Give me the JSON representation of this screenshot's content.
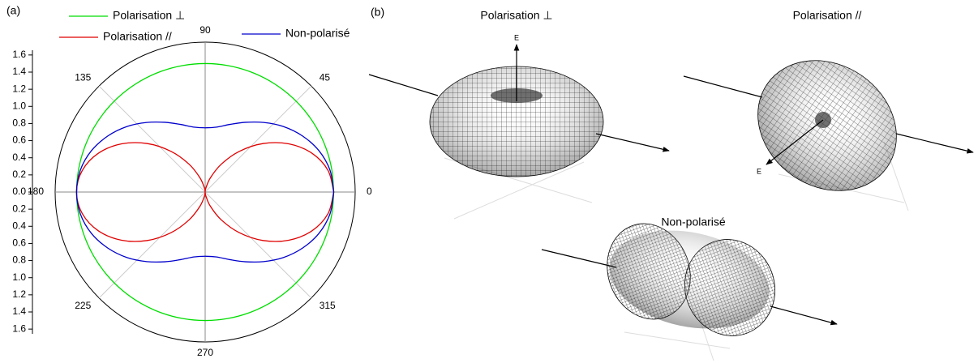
{
  "chart_data": {
    "type": "polar",
    "panel_label": "(a)",
    "theta": [
      0,
      10,
      20,
      30,
      40,
      50,
      60,
      70,
      80,
      90,
      100,
      110,
      120,
      130,
      140,
      150,
      160,
      170,
      180,
      190,
      200,
      210,
      220,
      230,
      240,
      250,
      260,
      270,
      280,
      290,
      300,
      310,
      320,
      330,
      340,
      350,
      360
    ],
    "series": [
      {
        "name": "Polarisation ⊥",
        "color": "#00dd00",
        "values": [
          1.5,
          1.5,
          1.5,
          1.5,
          1.5,
          1.5,
          1.5,
          1.5,
          1.5,
          1.5,
          1.5,
          1.5,
          1.5,
          1.5,
          1.5,
          1.5,
          1.5,
          1.5,
          1.5,
          1.5,
          1.5,
          1.5,
          1.5,
          1.5,
          1.5,
          1.5,
          1.5,
          1.5,
          1.5,
          1.5,
          1.5,
          1.5,
          1.5,
          1.5,
          1.5,
          1.5,
          1.5
        ]
      },
      {
        "name": "Polarisation //",
        "color": "#e00000",
        "values": [
          1.5,
          1.455,
          1.325,
          1.125,
          0.88,
          0.62,
          0.375,
          0.175,
          0.045,
          0,
          0.045,
          0.175,
          0.375,
          0.62,
          0.88,
          1.125,
          1.325,
          1.455,
          1.5,
          1.455,
          1.325,
          1.125,
          0.88,
          0.62,
          0.375,
          0.175,
          0.045,
          0,
          0.045,
          0.175,
          0.375,
          0.62,
          0.88,
          1.125,
          1.325,
          1.455,
          1.5
        ]
      },
      {
        "name": "Non-polarisé",
        "color": "#0000cc",
        "values": [
          1.5,
          1.478,
          1.412,
          1.31,
          1.19,
          1.06,
          0.94,
          0.84,
          0.77,
          0.75,
          0.77,
          0.84,
          0.94,
          1.06,
          1.19,
          1.31,
          1.412,
          1.478,
          1.5,
          1.478,
          1.412,
          1.31,
          1.19,
          1.06,
          0.94,
          0.84,
          0.77,
          0.75,
          0.77,
          0.84,
          0.94,
          1.06,
          1.19,
          1.31,
          1.412,
          1.478,
          1.5
        ]
      }
    ],
    "rlim": [
      0,
      1.75
    ],
    "rticks": [
      {
        "value": 0,
        "label": "0.0"
      },
      0.2,
      0.4,
      0.6,
      0.8,
      {
        "value": 1,
        "label": "1.0"
      },
      1.2,
      1.4,
      1.6
    ],
    "thetaticks": [
      0,
      45,
      90,
      135,
      180,
      225,
      270,
      315
    ]
  },
  "figure_b": {
    "panel_label": "(b)",
    "views": [
      {
        "title": "Polarisation ⊥",
        "axis_label": "E"
      },
      {
        "title": "Polarisation //",
        "axis_label": "E"
      },
      {
        "title": "Non-polarisé"
      }
    ]
  }
}
